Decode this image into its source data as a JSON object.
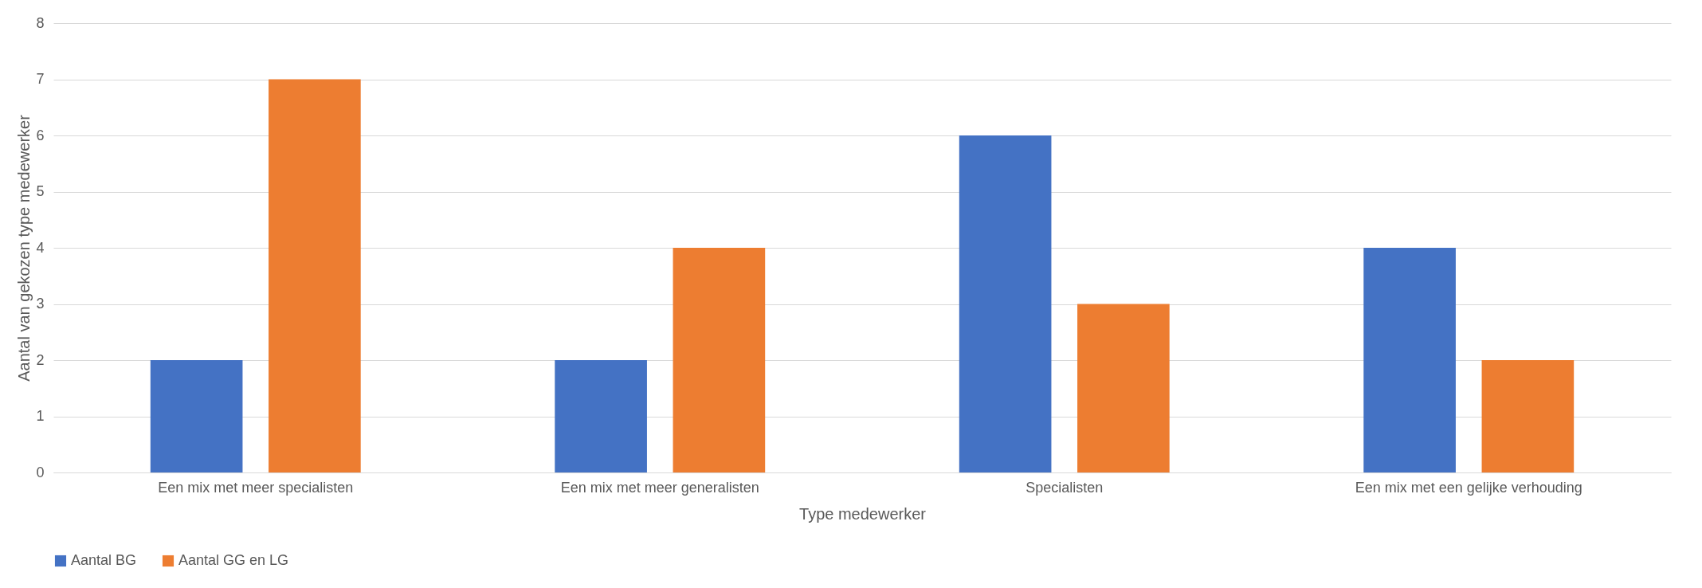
{
  "chart_data": {
    "type": "bar",
    "xlabel": "Type medewerker",
    "ylabel": "Aantal van gekozen type medewerker",
    "categories": [
      "Een mix met meer specialisten",
      "Een mix met meer generalisten",
      "Specialisten",
      "Een mix met een gelijke verhouding"
    ],
    "series": [
      {
        "name": "Aantal BG",
        "color": "#4472c4",
        "values": [
          2,
          2,
          6,
          4
        ]
      },
      {
        "name": "Aantal GG en LG",
        "color": "#ed7d31",
        "values": [
          7,
          4,
          3,
          2
        ]
      }
    ],
    "ylim": [
      0,
      8
    ],
    "yticks": [
      0,
      1,
      2,
      3,
      4,
      5,
      6,
      7,
      8
    ],
    "grid": "y",
    "legend": "bottom"
  }
}
